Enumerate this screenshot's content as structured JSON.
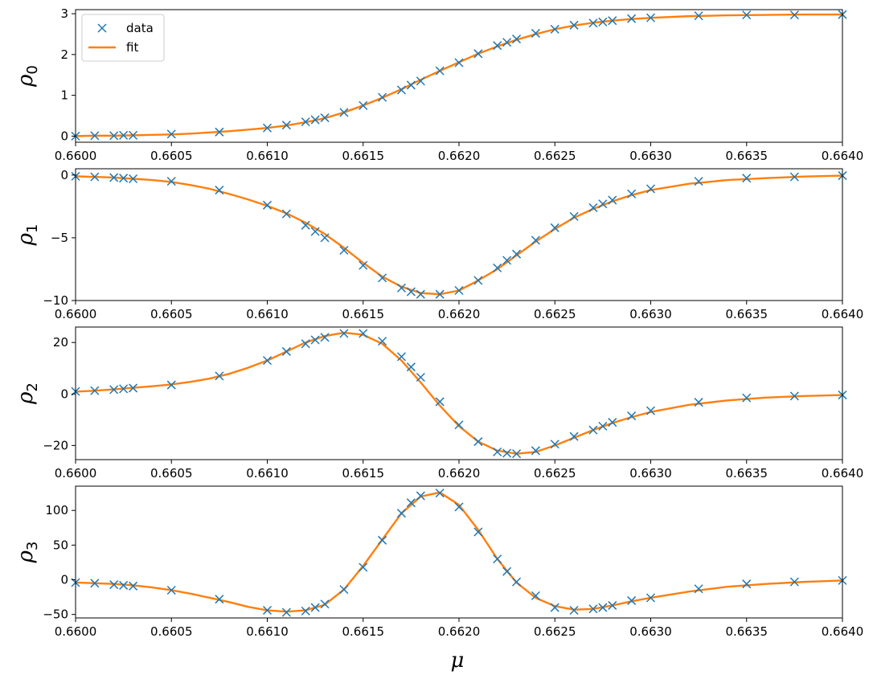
{
  "colors": {
    "data": "#1f77b4",
    "fit": "#ff7f0e",
    "axis": "#000000",
    "background": "#ffffff"
  },
  "legend": {
    "location": "top-left",
    "data_label": "data",
    "fit_label": "fit"
  },
  "xlabel": "μ",
  "chart_data": [
    {
      "type": "scatter+line",
      "ylabel_base": "ρ",
      "ylabel_sub": "0",
      "xlim": [
        0.66,
        0.664
      ],
      "ylim": [
        -0.15,
        3.1
      ],
      "xticks": [
        0.66,
        0.6605,
        0.661,
        0.6615,
        0.662,
        0.6625,
        0.663,
        0.6635,
        0.664
      ],
      "xtick_labels": [
        "0.6600",
        "0.6605",
        "0.6610",
        "0.6615",
        "0.6620",
        "0.6625",
        "0.6630",
        "0.6635",
        "0.6640"
      ],
      "yticks": [
        0,
        1,
        2,
        3
      ],
      "ytick_labels": [
        "0",
        "1",
        "2",
        "3"
      ],
      "series": [
        {
          "name": "data",
          "x": [
            0.66,
            0.6601,
            0.6602,
            0.66025,
            0.6603,
            0.6605,
            0.66075,
            0.661,
            0.6611,
            0.6612,
            0.66125,
            0.6613,
            0.6614,
            0.6615,
            0.6616,
            0.6617,
            0.66175,
            0.6618,
            0.6619,
            0.662,
            0.6621,
            0.6622,
            0.66225,
            0.6623,
            0.6624,
            0.6625,
            0.6626,
            0.6627,
            0.66275,
            0.6628,
            0.6629,
            0.663,
            0.66325,
            0.6635,
            0.66375,
            0.664
          ],
          "y": [
            0.0,
            0.01,
            0.01,
            0.02,
            0.02,
            0.05,
            0.1,
            0.2,
            0.27,
            0.35,
            0.4,
            0.45,
            0.58,
            0.75,
            0.95,
            1.13,
            1.25,
            1.35,
            1.6,
            1.8,
            2.02,
            2.22,
            2.3,
            2.38,
            2.52,
            2.62,
            2.72,
            2.77,
            2.8,
            2.83,
            2.88,
            2.9,
            2.95,
            2.97,
            2.97,
            2.98
          ]
        },
        {
          "name": "fit",
          "x": [
            0.66,
            0.6601,
            0.6602,
            0.6603,
            0.6604,
            0.6605,
            0.6606,
            0.6607,
            0.6608,
            0.6609,
            0.661,
            0.6611,
            0.6612,
            0.6613,
            0.6614,
            0.6615,
            0.6616,
            0.6617,
            0.6618,
            0.6619,
            0.662,
            0.6621,
            0.6622,
            0.6623,
            0.6624,
            0.6625,
            0.6626,
            0.6627,
            0.6628,
            0.6629,
            0.663,
            0.6632,
            0.6634,
            0.6636,
            0.6638,
            0.664
          ],
          "y": [
            0.0,
            0.01,
            0.01,
            0.02,
            0.03,
            0.04,
            0.06,
            0.09,
            0.12,
            0.16,
            0.2,
            0.26,
            0.34,
            0.44,
            0.58,
            0.75,
            0.94,
            1.15,
            1.38,
            1.6,
            1.81,
            2.02,
            2.2,
            2.36,
            2.5,
            2.62,
            2.71,
            2.78,
            2.83,
            2.87,
            2.9,
            2.94,
            2.96,
            2.97,
            2.98,
            2.98
          ]
        }
      ]
    },
    {
      "type": "scatter+line",
      "ylabel_base": "ρ",
      "ylabel_sub": "1",
      "xlim": [
        0.66,
        0.664
      ],
      "ylim": [
        -10.0,
        0.5
      ],
      "xticks": [
        0.66,
        0.6605,
        0.661,
        0.6615,
        0.662,
        0.6625,
        0.663,
        0.6635,
        0.664
      ],
      "xtick_labels": [
        "0.6600",
        "0.6605",
        "0.6610",
        "0.6615",
        "0.6620",
        "0.6625",
        "0.6630",
        "0.6635",
        "0.6640"
      ],
      "yticks": [
        -10,
        -5,
        0
      ],
      "ytick_labels": [
        "−10",
        "−5",
        "0"
      ],
      "series": [
        {
          "name": "data",
          "x": [
            0.66,
            0.6601,
            0.6602,
            0.66025,
            0.6603,
            0.6605,
            0.66075,
            0.661,
            0.6611,
            0.6612,
            0.66125,
            0.6613,
            0.6614,
            0.6615,
            0.6616,
            0.6617,
            0.66175,
            0.6618,
            0.6619,
            0.662,
            0.6621,
            0.6622,
            0.66225,
            0.6623,
            0.6624,
            0.6625,
            0.6626,
            0.6627,
            0.66275,
            0.6628,
            0.6629,
            0.663,
            0.66325,
            0.6635,
            0.66375,
            0.664
          ],
          "y": [
            -0.1,
            -0.15,
            -0.2,
            -0.25,
            -0.3,
            -0.5,
            -1.2,
            -2.4,
            -3.1,
            -4.0,
            -4.5,
            -5.0,
            -6.0,
            -7.2,
            -8.2,
            -9.0,
            -9.3,
            -9.5,
            -9.5,
            -9.2,
            -8.4,
            -7.4,
            -6.8,
            -6.3,
            -5.2,
            -4.2,
            -3.3,
            -2.6,
            -2.3,
            -2.0,
            -1.5,
            -1.1,
            -0.5,
            -0.25,
            -0.15,
            -0.05
          ]
        },
        {
          "name": "fit",
          "x": [
            0.66,
            0.6601,
            0.6602,
            0.6603,
            0.6604,
            0.6605,
            0.6606,
            0.6607,
            0.6608,
            0.6609,
            0.661,
            0.6611,
            0.6612,
            0.6613,
            0.6614,
            0.6615,
            0.6616,
            0.6617,
            0.6618,
            0.6619,
            0.662,
            0.6621,
            0.6622,
            0.6623,
            0.6624,
            0.6625,
            0.6626,
            0.6627,
            0.6628,
            0.6629,
            0.663,
            0.6632,
            0.6634,
            0.6636,
            0.6638,
            0.664
          ],
          "y": [
            -0.1,
            -0.15,
            -0.2,
            -0.3,
            -0.4,
            -0.55,
            -0.8,
            -1.1,
            -1.5,
            -1.95,
            -2.45,
            -3.05,
            -3.8,
            -4.7,
            -5.8,
            -7.0,
            -8.1,
            -8.9,
            -9.4,
            -9.5,
            -9.2,
            -8.4,
            -7.5,
            -6.4,
            -5.3,
            -4.3,
            -3.4,
            -2.7,
            -2.1,
            -1.6,
            -1.2,
            -0.7,
            -0.4,
            -0.25,
            -0.12,
            -0.05
          ]
        }
      ]
    },
    {
      "type": "scatter+line",
      "ylabel_base": "ρ",
      "ylabel_sub": "2",
      "xlim": [
        0.66,
        0.664
      ],
      "ylim": [
        -25.5,
        26.0
      ],
      "xticks": [
        0.66,
        0.6605,
        0.661,
        0.6615,
        0.662,
        0.6625,
        0.663,
        0.6635,
        0.664
      ],
      "xtick_labels": [
        "0.6600",
        "0.6605",
        "0.6610",
        "0.6615",
        "0.6620",
        "0.6625",
        "0.6630",
        "0.6635",
        "0.6640"
      ],
      "yticks": [
        -20,
        0,
        20
      ],
      "ytick_labels": [
        "−20",
        "0",
        "20"
      ],
      "series": [
        {
          "name": "data",
          "x": [
            0.66,
            0.6601,
            0.6602,
            0.66025,
            0.6603,
            0.6605,
            0.66075,
            0.661,
            0.6611,
            0.6612,
            0.66125,
            0.6613,
            0.6614,
            0.6615,
            0.6616,
            0.6617,
            0.66175,
            0.6618,
            0.6619,
            0.662,
            0.6621,
            0.6622,
            0.66225,
            0.6623,
            0.6624,
            0.6625,
            0.6626,
            0.6627,
            0.66275,
            0.6628,
            0.6629,
            0.663,
            0.66325,
            0.6635,
            0.66375,
            0.664
          ],
          "y": [
            1.0,
            1.3,
            1.7,
            2.0,
            2.3,
            3.5,
            7.0,
            13.0,
            16.5,
            19.5,
            21.0,
            22.0,
            23.5,
            23.5,
            20.5,
            14.5,
            10.5,
            6.5,
            -3.0,
            -12.0,
            -18.5,
            -22.5,
            -23.0,
            -23.2,
            -22.0,
            -19.5,
            -16.5,
            -14.0,
            -12.5,
            -11.0,
            -8.5,
            -6.5,
            -3.2,
            -1.5,
            -0.8,
            -0.4
          ]
        },
        {
          "name": "fit",
          "x": [
            0.66,
            0.6601,
            0.6602,
            0.6603,
            0.6604,
            0.6605,
            0.6606,
            0.6607,
            0.6608,
            0.6609,
            0.661,
            0.6611,
            0.6612,
            0.6613,
            0.6614,
            0.6615,
            0.6616,
            0.6617,
            0.6618,
            0.6619,
            0.662,
            0.6621,
            0.6622,
            0.6623,
            0.6624,
            0.6625,
            0.6626,
            0.6627,
            0.6628,
            0.6629,
            0.663,
            0.6632,
            0.6634,
            0.6636,
            0.6638,
            0.664
          ],
          "y": [
            0.9,
            1.3,
            1.8,
            2.4,
            3.0,
            3.7,
            4.7,
            6.0,
            7.8,
            10.2,
            13.0,
            16.5,
            20.0,
            22.5,
            23.8,
            23.0,
            19.5,
            13.0,
            4.5,
            -4.5,
            -12.5,
            -18.5,
            -22.0,
            -23.2,
            -22.5,
            -20.0,
            -17.0,
            -14.0,
            -11.3,
            -9.0,
            -7.0,
            -4.2,
            -2.5,
            -1.4,
            -0.8,
            -0.4
          ]
        }
      ]
    },
    {
      "type": "scatter+line",
      "ylabel_base": "ρ",
      "ylabel_sub": "3",
      "xlim": [
        0.66,
        0.664
      ],
      "ylim": [
        -55,
        135
      ],
      "xticks": [
        0.66,
        0.6605,
        0.661,
        0.6615,
        0.662,
        0.6625,
        0.663,
        0.6635,
        0.664
      ],
      "xtick_labels": [
        "0.6600",
        "0.6605",
        "0.6610",
        "0.6615",
        "0.6620",
        "0.6625",
        "0.6630",
        "0.6635",
        "0.6640"
      ],
      "yticks": [
        -50,
        0,
        50,
        100
      ],
      "ytick_labels": [
        "−50",
        "0",
        "50",
        "100"
      ],
      "series": [
        {
          "name": "data",
          "x": [
            0.66,
            0.6601,
            0.6602,
            0.66025,
            0.6603,
            0.6605,
            0.66075,
            0.661,
            0.6611,
            0.6612,
            0.66125,
            0.6613,
            0.6614,
            0.6615,
            0.6616,
            0.6617,
            0.66175,
            0.6618,
            0.6619,
            0.662,
            0.6621,
            0.6622,
            0.66225,
            0.6623,
            0.6624,
            0.6625,
            0.6626,
            0.6627,
            0.66275,
            0.6628,
            0.6629,
            0.663,
            0.66325,
            0.6635,
            0.66375,
            0.664
          ],
          "y": [
            -4,
            -5,
            -7,
            -8,
            -9,
            -15,
            -28,
            -44,
            -47,
            -45,
            -40,
            -35,
            -14,
            18,
            57,
            96,
            111,
            121,
            125,
            105,
            69,
            30,
            12,
            -3,
            -23,
            -40,
            -44,
            -42,
            -40,
            -37,
            -30,
            -26,
            -13,
            -6,
            -3,
            -1
          ]
        },
        {
          "name": "fit",
          "x": [
            0.66,
            0.6601,
            0.6602,
            0.6603,
            0.6604,
            0.6605,
            0.6606,
            0.6607,
            0.6608,
            0.6609,
            0.661,
            0.6611,
            0.6612,
            0.6613,
            0.6614,
            0.6615,
            0.6616,
            0.6617,
            0.6618,
            0.6619,
            0.662,
            0.6621,
            0.6622,
            0.6623,
            0.6624,
            0.6625,
            0.6626,
            0.6627,
            0.6628,
            0.6629,
            0.663,
            0.6632,
            0.6634,
            0.6636,
            0.6638,
            0.664
          ],
          "y": [
            -4,
            -5,
            -6,
            -8,
            -11,
            -15,
            -20,
            -26,
            -32,
            -39,
            -44,
            -46,
            -44,
            -36,
            -14,
            20,
            58,
            96,
            120,
            126,
            108,
            72,
            30,
            -4,
            -26,
            -38,
            -43,
            -42,
            -37,
            -31,
            -26,
            -17,
            -10,
            -6,
            -3,
            -1
          ]
        }
      ]
    }
  ]
}
